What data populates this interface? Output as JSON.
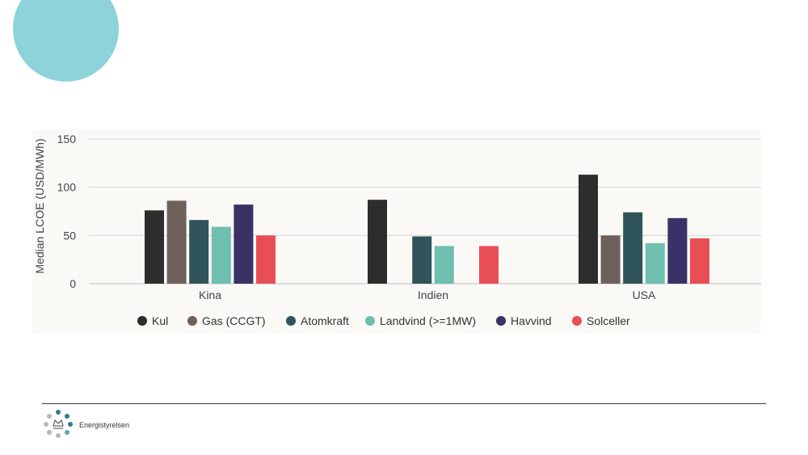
{
  "brand": {
    "name": "Energistyrelsen"
  },
  "chart_data": {
    "type": "bar",
    "ylabel": "Median LCOE (USD/MWh)",
    "ylim": [
      0,
      150
    ],
    "yticks": [
      0,
      50,
      100,
      150
    ],
    "grid": true,
    "legend_position": "bottom",
    "categories": [
      "Kina",
      "Indien",
      "USA"
    ],
    "series": [
      {
        "name": "Kul",
        "color": "#2d2d2d",
        "values": [
          76,
          87,
          113
        ]
      },
      {
        "name": "Gas (CCGT)",
        "color": "#6e615c",
        "values": [
          86,
          null,
          50
        ]
      },
      {
        "name": "Atomkraft",
        "color": "#2f5459",
        "values": [
          66,
          49,
          74
        ]
      },
      {
        "name": "Landvind (>=1MW)",
        "color": "#6fbfb0",
        "values": [
          59,
          39,
          42
        ]
      },
      {
        "name": "Havvind",
        "color": "#3a3166",
        "values": [
          82,
          null,
          68
        ]
      },
      {
        "name": "Solceller",
        "color": "#e84e55",
        "values": [
          50,
          39,
          47
        ]
      }
    ]
  }
}
